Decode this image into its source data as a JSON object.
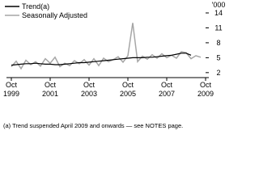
{
  "chart_data": {
    "type": "line",
    "y_unit_label": "'000",
    "footnote": "(a) Trend suspended April 2009 and onwards — see NOTES page.",
    "categories": [
      [
        "Oct",
        "1999"
      ],
      null,
      null,
      null,
      null,
      null,
      null,
      null,
      [
        "Oct",
        "2001"
      ],
      null,
      null,
      null,
      null,
      null,
      null,
      null,
      [
        "Oct",
        "2003"
      ],
      null,
      null,
      null,
      null,
      null,
      null,
      null,
      [
        "Oct",
        "2005"
      ],
      null,
      null,
      null,
      null,
      null,
      null,
      null,
      [
        "Oct",
        "2007"
      ],
      null,
      null,
      null,
      null,
      null,
      null,
      null,
      [
        "Oct",
        "2009"
      ]
    ],
    "series": [
      {
        "name": "Trend(a)",
        "color": "#000000",
        "values": [
          3.5,
          3.6,
          3.7,
          3.8,
          3.8,
          3.9,
          3.8,
          3.7,
          3.7,
          3.6,
          3.6,
          3.7,
          3.8,
          3.9,
          4.0,
          4.0,
          4.1,
          4.2,
          4.3,
          4.4,
          4.5,
          4.6,
          4.7,
          4.8,
          4.9,
          5.0,
          5.0,
          5.0,
          5.1,
          5.1,
          5.2,
          5.3,
          5.4,
          5.5,
          5.7,
          5.9,
          5.9,
          5.5,
          null,
          null,
          null
        ]
      },
      {
        "name": "Seasonally Adjusted",
        "color": "#a6a6a6",
        "values": [
          3.2,
          4.3,
          2.8,
          4.5,
          3.6,
          4.2,
          3.3,
          4.8,
          3.9,
          5.1,
          3.2,
          3.9,
          3.4,
          4.4,
          3.8,
          4.6,
          3.5,
          4.8,
          3.4,
          4.9,
          4.2,
          4.6,
          5.2,
          4.1,
          5.4,
          12.0,
          4.2,
          5.3,
          4.7,
          5.6,
          4.9,
          5.8,
          5.0,
          5.5,
          4.9,
          6.2,
          6.0,
          4.8,
          5.4,
          5.1,
          null
        ]
      }
    ],
    "ylim": [
      1,
      14
    ],
    "yticks": [
      2,
      5,
      8,
      11,
      14
    ]
  }
}
